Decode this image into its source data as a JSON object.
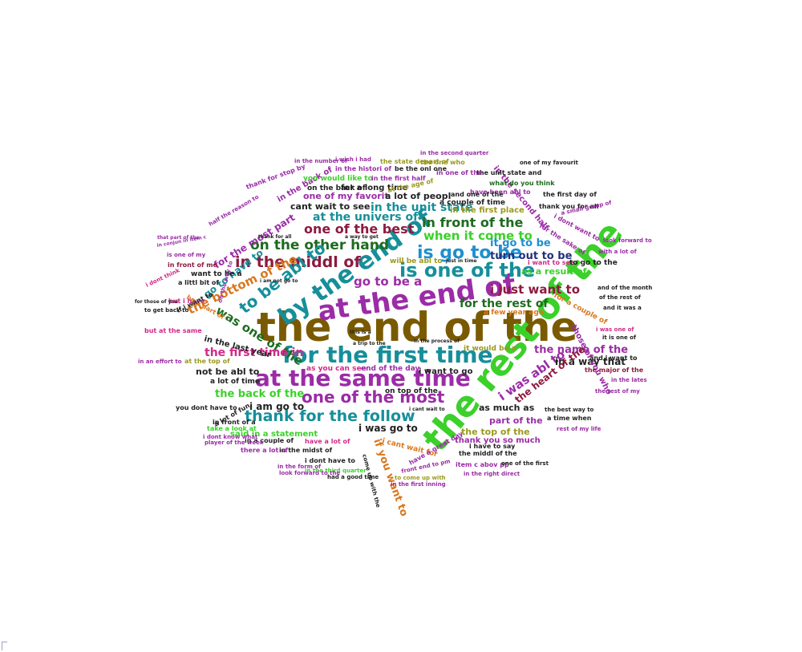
{
  "colors": {
    "brown": "#7a5a00",
    "purple": "#9b2ca6",
    "teal": "#168f9a",
    "green": "#3bd02a",
    "navy": "#22307a",
    "darkgreen": "#1d6b1f",
    "blue": "#1f8fd0",
    "maroon": "#8c1b3f",
    "orange": "#d9771d",
    "olive": "#9a9a1d",
    "magenta": "#d02a8a",
    "black": "#222222"
  },
  "words": [
    {
      "text": "the end of the",
      "color": "brown"
    },
    {
      "text": "the rest of the",
      "color": "green"
    },
    {
      "text": "at the end of",
      "color": "purple"
    },
    {
      "text": "at the same time",
      "color": "purple"
    },
    {
      "text": "for the first time",
      "color": "teal"
    },
    {
      "text": "by the end of",
      "color": "teal"
    },
    {
      "text": "is one of the",
      "color": "teal"
    },
    {
      "text": "is go to be",
      "color": "blue"
    },
    {
      "text": "thank for the follow",
      "color": "teal"
    },
    {
      "text": "one of the most",
      "color": "purple"
    },
    {
      "text": "in the middl of",
      "color": "maroon"
    },
    {
      "text": "on the other hand",
      "color": "darkgreen"
    },
    {
      "text": "one of the best",
      "color": "maroon"
    },
    {
      "text": "in front of the",
      "color": "darkgreen"
    },
    {
      "text": "when it come to",
      "color": "green"
    },
    {
      "text": "to be abl to",
      "color": "teal"
    },
    {
      "text": "the bottom of the",
      "color": "orange"
    },
    {
      "text": "was one of the",
      "color": "darkgreen"
    },
    {
      "text": "go to be a",
      "color": "purple"
    },
    {
      "text": "i just want to",
      "color": "maroon"
    },
    {
      "text": "for the rest of",
      "color": "darkgreen"
    },
    {
      "text": "the first time in",
      "color": "magenta"
    },
    {
      "text": "i was abl to",
      "color": "purple"
    },
    {
      "text": "the name of the",
      "color": "purple"
    },
    {
      "text": "in the unit state",
      "color": "teal"
    },
    {
      "text": "at the univers of",
      "color": "teal"
    },
    {
      "text": "it go to be",
      "color": "blue"
    },
    {
      "text": "turn out to be",
      "color": "navy"
    },
    {
      "text": "as a result of",
      "color": "green"
    },
    {
      "text": "the back of the",
      "color": "green"
    },
    {
      "text": "i am go to",
      "color": "black"
    },
    {
      "text": "if you want to",
      "color": "orange"
    },
    {
      "text": "in a way that",
      "color": "black"
    },
    {
      "text": "the heart of the",
      "color": "maroon"
    },
    {
      "text": "as much as",
      "color": "black"
    },
    {
      "text": "part of the",
      "color": "purple"
    },
    {
      "text": "i was go to",
      "color": "black"
    },
    {
      "text": "the top of the",
      "color": "olive"
    },
    {
      "text": "thank you so much",
      "color": "purple"
    },
    {
      "text": "one of my favorit",
      "color": "purple"
    },
    {
      "text": "a lot of peopl",
      "color": "black"
    },
    {
      "text": "cant wait to see",
      "color": "black"
    },
    {
      "text": "in the first place",
      "color": "olive"
    },
    {
      "text": "for the most part",
      "color": "purple"
    },
    {
      "text": "go to have to",
      "color": "teal"
    },
    {
      "text": "in the last year",
      "color": "black"
    },
    {
      "text": "not be abl to",
      "color": "black"
    },
    {
      "text": "said in a statement",
      "color": "green"
    },
    {
      "text": "a couple of time",
      "color": "black"
    },
    {
      "text": "for a long time",
      "color": "black"
    },
    {
      "text": "on the back of",
      "color": "black"
    },
    {
      "text": "in the back of",
      "color": "purple"
    },
    {
      "text": "i want to go",
      "color": "black"
    },
    {
      "text": "as you can see",
      "color": "magenta"
    },
    {
      "text": "end of the day",
      "color": "purple"
    },
    {
      "text": "on top of the",
      "color": "black"
    },
    {
      "text": "it would be a",
      "color": "olive"
    },
    {
      "text": "will be abl to",
      "color": "olive"
    },
    {
      "text": "a few year ago",
      "color": "orange"
    },
    {
      "text": "for a couple of",
      "color": "orange"
    },
    {
      "text": "those of you who",
      "color": "purple"
    },
    {
      "text": "in the second half",
      "color": "purple"
    },
    {
      "text": "the state depart of",
      "color": "olive"
    },
    {
      "text": "you would like to",
      "color": "green"
    },
    {
      "text": "in the first half",
      "color": "purple"
    },
    {
      "text": "the unit state and",
      "color": "black"
    },
    {
      "text": "what do you think",
      "color": "darkgreen"
    },
    {
      "text": "in the histori of",
      "color": "purple"
    },
    {
      "text": "be the onl one",
      "color": "black"
    },
    {
      "text": "have been abl to",
      "color": "purple"
    },
    {
      "text": "the first day of",
      "color": "black"
    },
    {
      "text": "thank you for all",
      "color": "black"
    },
    {
      "text": "in one of the",
      "color": "purple"
    },
    {
      "text": "i want to see",
      "color": "magenta"
    },
    {
      "text": "to go to the",
      "color": "black"
    },
    {
      "text": "want to be a",
      "color": "black"
    },
    {
      "text": "in front of me",
      "color": "maroon"
    },
    {
      "text": "a littl bit of",
      "color": "black"
    },
    {
      "text": "a lot of time",
      "color": "black"
    },
    {
      "text": "in front of a",
      "color": "black"
    },
    {
      "text": "i cant wait for",
      "color": "orange"
    },
    {
      "text": "i dont have to",
      "color": "black"
    },
    {
      "text": "the middl of the",
      "color": "black"
    },
    {
      "text": "i have to say",
      "color": "black"
    },
    {
      "text": "have a lot of",
      "color": "magenta"
    },
    {
      "text": "in a couple of",
      "color": "black"
    },
    {
      "text": "in the midst of",
      "color": "black"
    },
    {
      "text": "there a lot of",
      "color": "purple"
    },
    {
      "text": "a time when",
      "color": "black"
    },
    {
      "text": "the best way to",
      "color": "black"
    },
    {
      "text": "rest of my life",
      "color": "purple"
    },
    {
      "text": "the rest of my",
      "color": "purple"
    },
    {
      "text": "the major of the",
      "color": "maroon"
    },
    {
      "text": "in the third quarter",
      "color": "green"
    },
    {
      "text": "to come up with",
      "color": "olive"
    },
    {
      "text": "in the first inning",
      "color": "purple"
    },
    {
      "text": "in the right direct",
      "color": "purple"
    },
    {
      "text": "item c abov pp",
      "color": "purple"
    },
    {
      "text": "one of the first",
      "color": "black"
    },
    {
      "text": "look forward to the",
      "color": "purple"
    },
    {
      "text": "had a good time",
      "color": "black"
    },
    {
      "text": "in the form of",
      "color": "purple"
    },
    {
      "text": "i dont know what",
      "color": "purple"
    },
    {
      "text": "player of the week",
      "color": "purple"
    },
    {
      "text": "you dont have to",
      "color": "black"
    },
    {
      "text": "take a look at",
      "color": "green"
    },
    {
      "text": "but i have",
      "color": "magenta"
    },
    {
      "text": "but at the same",
      "color": "magenta"
    },
    {
      "text": "in an effort to",
      "color": "purple"
    },
    {
      "text": "at the top of",
      "color": "olive"
    },
    {
      "text": "be a part of",
      "color": "orange"
    },
    {
      "text": "i wish i had",
      "color": "purple"
    },
    {
      "text": "in the number of",
      "color": "purple"
    },
    {
      "text": "in the second quarter",
      "color": "purple"
    },
    {
      "text": "one of my favourit",
      "color": "black"
    },
    {
      "text": "the one who",
      "color": "olive"
    },
    {
      "text": "at the age of",
      "color": "olive"
    },
    {
      "text": "a small group of",
      "color": "purple"
    },
    {
      "text": "i dont want to",
      "color": "purple"
    },
    {
      "text": "for the sake of",
      "color": "purple"
    },
    {
      "text": "with a lot of",
      "color": "purple"
    },
    {
      "text": "look forward to",
      "color": "purple"
    },
    {
      "text": "and one of the",
      "color": "black"
    },
    {
      "text": "and of the month",
      "color": "black"
    },
    {
      "text": "of the rest of",
      "color": "black"
    },
    {
      "text": "and it was a",
      "color": "black"
    },
    {
      "text": "i was one of",
      "color": "magenta"
    },
    {
      "text": "a lot of fun",
      "color": "black"
    },
    {
      "text": "and i want to",
      "color": "black"
    },
    {
      "text": "in the lates",
      "color": "purple"
    },
    {
      "text": "it is one of",
      "color": "black"
    },
    {
      "text": "come up with the",
      "color": "black"
    },
    {
      "text": "front end to pm",
      "color": "purple"
    },
    {
      "text": "have a great day",
      "color": "purple"
    },
    {
      "text": "is one of my",
      "color": "purple"
    },
    {
      "text": "to get back to",
      "color": "black"
    },
    {
      "text": "for those of you",
      "color": "black"
    },
    {
      "text": "if i want to",
      "color": "black"
    },
    {
      "text": "that part of the",
      "color": "purple"
    },
    {
      "text": "in conjun in item c",
      "color": "purple"
    },
    {
      "text": "thank for stop by",
      "color": "purple"
    },
    {
      "text": "half the reason to",
      "color": "purple"
    },
    {
      "text": "i dont think",
      "color": "magenta"
    },
    {
      "text": "thank for all",
      "color": "black"
    },
    {
      "text": "just in time",
      "color": "black"
    },
    {
      "text": "in the process of",
      "color": "black"
    },
    {
      "text": "a trip to the",
      "color": "black"
    },
    {
      "text": "a way to get",
      "color": "black"
    },
    {
      "text": "i cant wait to",
      "color": "black"
    },
    {
      "text": "on the way to",
      "color": "purple"
    },
    {
      "text": "i am not go to",
      "color": "black"
    },
    {
      "text": "this is a",
      "color": "black"
    }
  ]
}
